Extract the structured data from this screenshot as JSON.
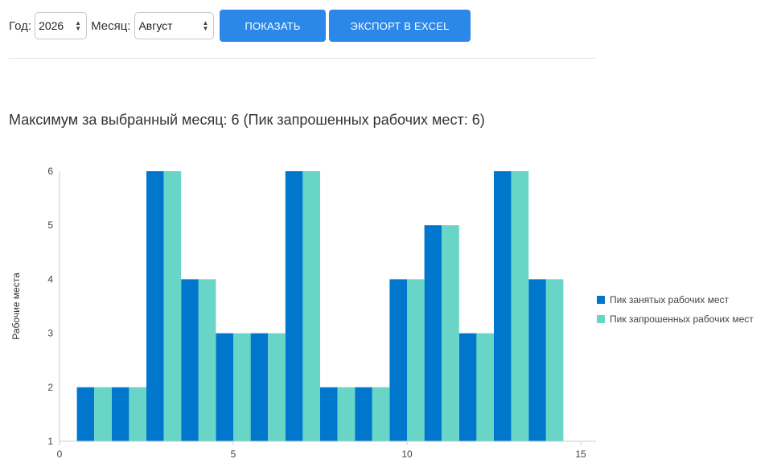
{
  "controls": {
    "year_label": "Год:",
    "year_value": "2026",
    "month_label": "Месяц:",
    "month_value": "Август",
    "show_button": "ПОКАЗАТЬ",
    "export_button": "ЭКСПОРТ В EXCEL"
  },
  "headline": "Максимум за выбранный месяц: 6 (Пик запрошенных рабочих мест: 6)",
  "colors": {
    "series1": "#0077cc",
    "series2": "#68d5c7",
    "button": "#2b87e8"
  },
  "chart_data": {
    "type": "bar",
    "ylabel": "Рабочие места",
    "xlabel": "",
    "xlim": [
      0,
      15
    ],
    "ylim": [
      1,
      6
    ],
    "xticks": [
      0,
      5,
      10,
      15
    ],
    "yticks": [
      1,
      2,
      3,
      4,
      5,
      6
    ],
    "x": [
      1,
      2,
      3,
      4,
      5,
      6,
      7,
      8,
      9,
      10,
      11,
      12,
      13,
      14
    ],
    "series": [
      {
        "name": "Пик занятых рабочих мест",
        "values": [
          2,
          2,
          6,
          4,
          3,
          3,
          6,
          2,
          2,
          4,
          5,
          3,
          6,
          4
        ]
      },
      {
        "name": "Пик запрошенных рабочих мест",
        "values": [
          2,
          2,
          6,
          4,
          3,
          3,
          6,
          2,
          2,
          4,
          5,
          3,
          6,
          4
        ]
      }
    ],
    "legend": "right",
    "grid": false
  }
}
